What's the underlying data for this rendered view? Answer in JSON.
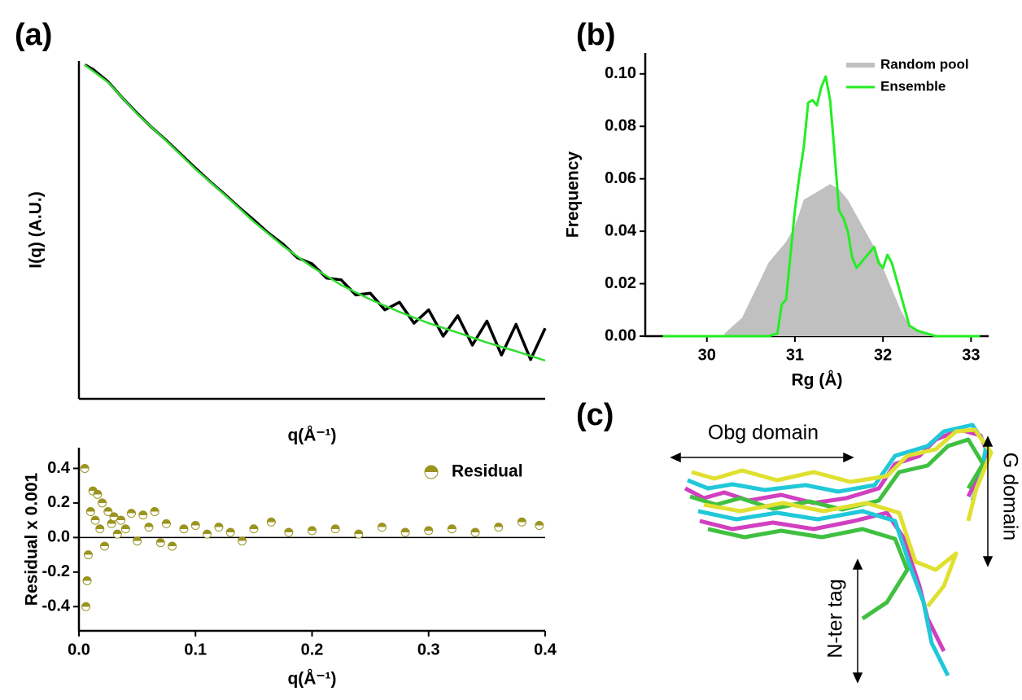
{
  "chart_data": [
    {
      "type": "line",
      "panel_label": "(a)",
      "x_label": "q(Å⁻¹)",
      "y_label": "I(q) (A.U.)",
      "log_y": true,
      "xlim": [
        0,
        0.4
      ],
      "ylim": [
        0.0001,
        100
      ],
      "series": [
        {
          "color": "#000000",
          "width": 3.5,
          "x": [
            0.005,
            0.0125,
            0.025,
            0.0375,
            0.05,
            0.0625,
            0.075,
            0.0875,
            0.1,
            0.1125,
            0.125,
            0.1375,
            0.15,
            0.1625,
            0.175,
            0.1875,
            0.2,
            0.2125,
            0.225,
            0.2375,
            0.25,
            0.2625,
            0.275,
            0.2875,
            0.3,
            0.3125,
            0.325,
            0.3375,
            0.35,
            0.3625,
            0.375,
            0.3875,
            0.4
          ],
          "values": [
            86,
            70,
            43,
            22,
            11.8,
            6.6,
            3.9,
            2.2,
            1.25,
            0.72,
            0.43,
            0.25,
            0.15,
            0.088,
            0.056,
            0.032,
            0.025,
            0.014,
            0.013,
            0.007,
            0.0075,
            0.0038,
            0.0052,
            0.0022,
            0.0038,
            0.0013,
            0.003,
            0.0009,
            0.0024,
            0.0006,
            0.0021,
            0.0005,
            0.0018
          ]
        },
        {
          "color": "#33dd33",
          "width": 2.5,
          "x": [
            0.005,
            0.025,
            0.05,
            0.075,
            0.1,
            0.125,
            0.15,
            0.175,
            0.2,
            0.225,
            0.25,
            0.275,
            0.3,
            0.325,
            0.35,
            0.375,
            0.4
          ],
          "values": [
            85,
            42,
            11.5,
            3.8,
            1.2,
            0.42,
            0.14,
            0.052,
            0.022,
            0.0105,
            0.0058,
            0.0035,
            0.0022,
            0.0015,
            0.001,
            0.0007,
            0.00048
          ]
        }
      ]
    },
    {
      "type": "scatter",
      "x_label": "q(Å⁻¹)",
      "y_label": "Residual x 0.001",
      "xlim": [
        0,
        0.4
      ],
      "ylim": [
        -0.54,
        0.52
      ],
      "xticks": [
        {
          "value": 0,
          "label": "0.0"
        },
        0.1,
        0.2,
        0.3,
        0.4
      ],
      "yticks": [
        -0.4,
        -0.2,
        {
          "value": 0,
          "label": "0.0"
        },
        0.2,
        0.4
      ],
      "hline": 0,
      "series": [
        {
          "name": "Residual",
          "color": "#9a9420",
          "x": [
            0.005,
            0.006,
            0.007,
            0.008,
            0.01,
            0.012,
            0.014,
            0.016,
            0.018,
            0.02,
            0.022,
            0.025,
            0.028,
            0.03,
            0.033,
            0.036,
            0.04,
            0.045,
            0.05,
            0.055,
            0.06,
            0.065,
            0.07,
            0.075,
            0.08,
            0.09,
            0.1,
            0.11,
            0.12,
            0.13,
            0.14,
            0.15,
            0.165,
            0.18,
            0.2,
            0.22,
            0.24,
            0.26,
            0.28,
            0.3,
            0.32,
            0.34,
            0.36,
            0.38,
            0.395
          ],
          "values": [
            0.4,
            -0.4,
            -0.25,
            -0.1,
            0.15,
            0.27,
            0.1,
            0.25,
            0.05,
            0.2,
            -0.05,
            0.15,
            0.08,
            0.12,
            0.02,
            0.1,
            0.05,
            0.14,
            -0.02,
            0.13,
            0.06,
            0.15,
            -0.03,
            0.08,
            -0.05,
            0.05,
            0.07,
            0.02,
            0.06,
            0.03,
            -0.02,
            0.05,
            0.09,
            0.03,
            0.04,
            0.05,
            0.02,
            0.06,
            0.03,
            0.04,
            0.05,
            0.03,
            0.06,
            0.09,
            0.07
          ]
        }
      ]
    },
    {
      "type": "line",
      "panel_label": "(b)",
      "x_label": "Rg (Å)",
      "y_label": "Frequency",
      "xlim": [
        29.3,
        33.2
      ],
      "ylim": [
        0,
        0.108
      ],
      "xticks": [
        30,
        31,
        32,
        33
      ],
      "yticks": [
        {
          "value": 0,
          "label": "0.00"
        },
        {
          "value": 0.02,
          "label": "0.02"
        },
        {
          "value": 0.04,
          "label": "0.04"
        },
        {
          "value": 0.06,
          "label": "0.06"
        },
        {
          "value": 0.08,
          "label": "0.08"
        },
        {
          "value": 0.1,
          "label": "0.10"
        }
      ],
      "series": [
        {
          "name": "Random pool",
          "color": "#c0c0c0",
          "style": "area",
          "x": [
            30.2,
            30.4,
            30.5,
            30.6,
            30.7,
            30.8,
            30.9,
            31.0,
            31.1,
            31.2,
            31.3,
            31.4,
            31.5,
            31.6,
            31.7,
            31.8,
            31.9,
            32.0,
            32.1,
            32.2,
            32.3,
            32.5,
            32.7
          ],
          "values": [
            0.001,
            0.007,
            0.014,
            0.021,
            0.028,
            0.032,
            0.036,
            0.042,
            0.052,
            0.054,
            0.056,
            0.058,
            0.056,
            0.052,
            0.046,
            0.04,
            0.034,
            0.026,
            0.018,
            0.01,
            0.004,
            0.0005,
            0
          ]
        },
        {
          "name": "Ensemble",
          "color": "#22ee22",
          "style": "line",
          "x": [
            29.5,
            30.7,
            30.8,
            30.85,
            30.9,
            31.0,
            31.05,
            31.1,
            31.15,
            31.2,
            31.25,
            31.3,
            31.35,
            31.4,
            31.45,
            31.5,
            31.55,
            31.6,
            31.65,
            31.7,
            31.75,
            31.8,
            31.85,
            31.9,
            31.95,
            32.0,
            32.05,
            32.1,
            32.2,
            32.3,
            32.4,
            32.6,
            33.1
          ],
          "values": [
            0,
            0,
            0.001,
            0.012,
            0.014,
            0.048,
            0.061,
            0.072,
            0.089,
            0.09,
            0.088,
            0.095,
            0.099,
            0.09,
            0.07,
            0.048,
            0.045,
            0.04,
            0.03,
            0.026,
            0.028,
            0.03,
            0.032,
            0.034,
            0.028,
            0.026,
            0.031,
            0.028,
            0.016,
            0.004,
            0.002,
            0,
            0
          ]
        }
      ]
    }
  ],
  "structure_panel": {
    "panel_label": "(c)",
    "labels": [
      "Obg domain",
      "G domain",
      "N-ter tag"
    ]
  }
}
